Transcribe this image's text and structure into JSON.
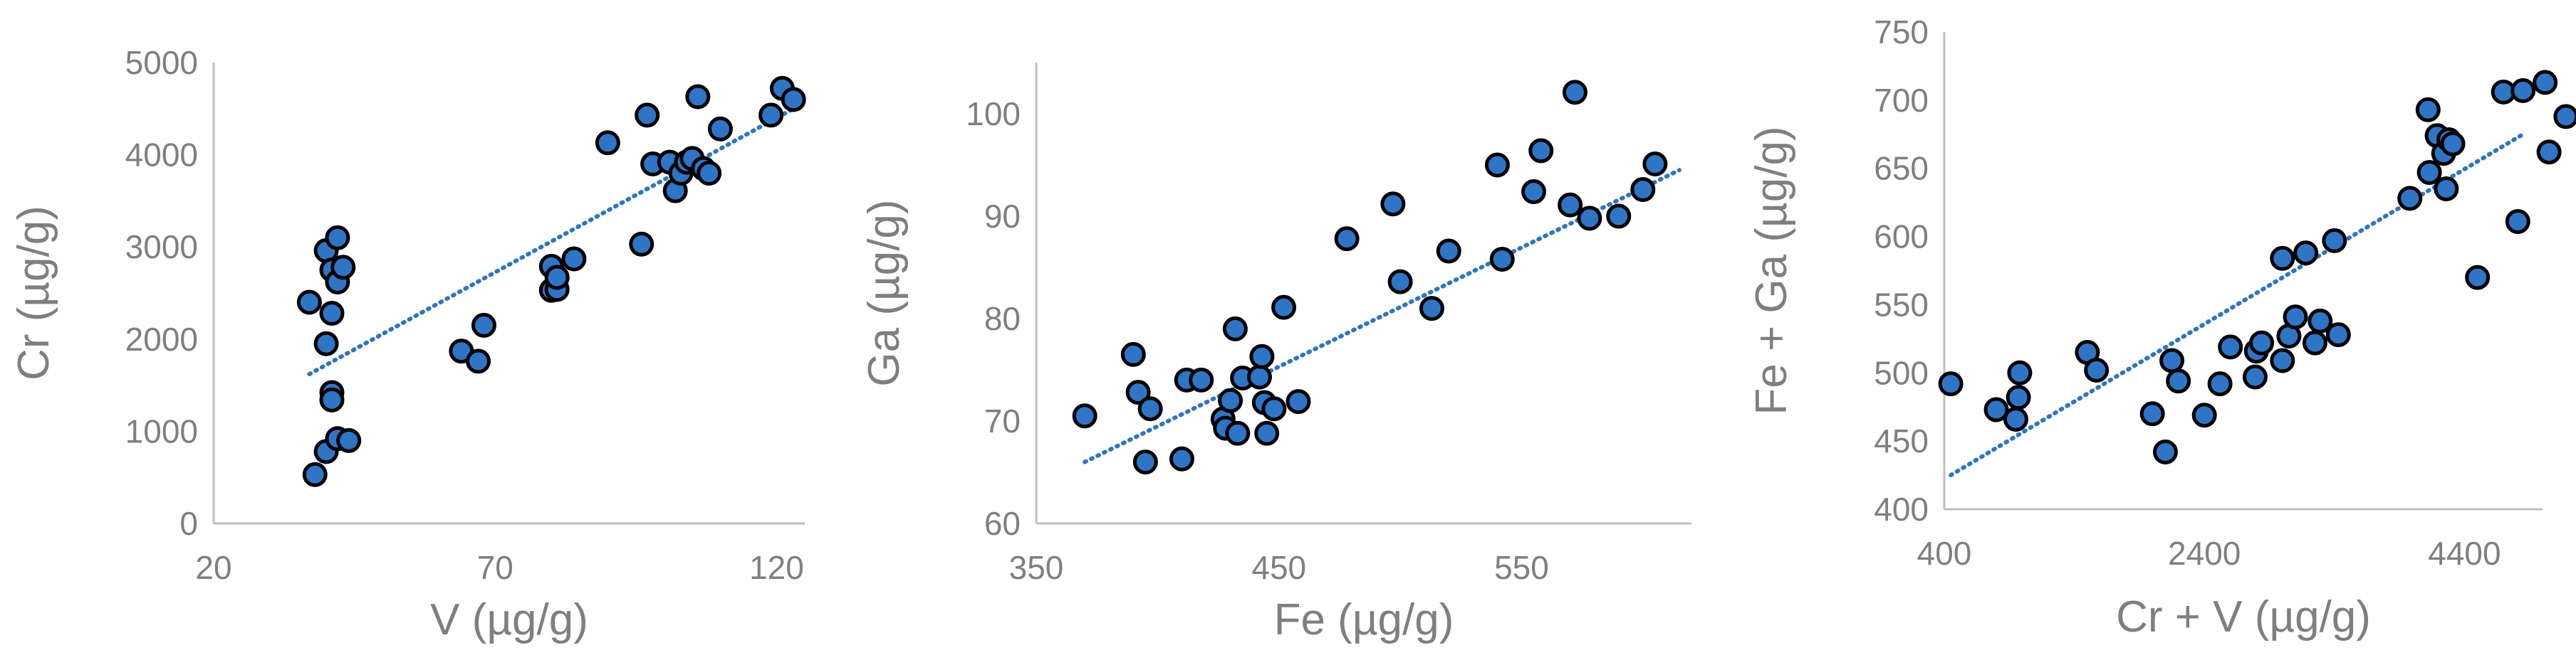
{
  "colors": {
    "marker_fill": "#2e75c6",
    "marker_stroke": "#000000",
    "trend": "#2e75c6",
    "axis": "#bfbfbf",
    "text": "#7f7f7f"
  },
  "chart_data": [
    {
      "type": "scatter",
      "xlabel": "V  (µg/g)",
      "ylabel": "Cr (µg/g)",
      "xlim": [
        20,
        125
      ],
      "ylim": [
        0,
        5000
      ],
      "xticks": [
        "20",
        "70",
        "120"
      ],
      "yticks": [
        "0",
        "1000",
        "2000",
        "3000",
        "4000",
        "5000"
      ],
      "trendline": {
        "style": "dotted",
        "from": [
          37,
          1620
        ],
        "to": [
          123,
          4500
        ]
      },
      "points": [
        [
          37,
          2400
        ],
        [
          38,
          530
        ],
        [
          40,
          1950
        ],
        [
          40,
          2960
        ],
        [
          40,
          780
        ],
        [
          41,
          2750
        ],
        [
          41,
          2280
        ],
        [
          41,
          1420
        ],
        [
          41,
          1340
        ],
        [
          42,
          3100
        ],
        [
          42,
          2620
        ],
        [
          42,
          920
        ],
        [
          43,
          2780
        ],
        [
          44,
          900
        ],
        [
          64,
          1870
        ],
        [
          67,
          1760
        ],
        [
          68,
          2150
        ],
        [
          80,
          2790
        ],
        [
          80,
          2530
        ],
        [
          81,
          2540
        ],
        [
          81,
          2670
        ],
        [
          84,
          2870
        ],
        [
          90,
          4130
        ],
        [
          96,
          3030
        ],
        [
          97,
          4430
        ],
        [
          98,
          3900
        ],
        [
          101,
          3920
        ],
        [
          102,
          3610
        ],
        [
          103,
          3800
        ],
        [
          104,
          3920
        ],
        [
          105,
          3960
        ],
        [
          106,
          4630
        ],
        [
          107,
          3850
        ],
        [
          108,
          3800
        ],
        [
          110,
          4280
        ],
        [
          119,
          4430
        ],
        [
          121,
          4720
        ],
        [
          123,
          4600
        ]
      ]
    },
    {
      "type": "scatter",
      "xlabel": "Fe (µg/g)",
      "ylabel": "Ga  (µg/g)",
      "xlim": [
        350,
        620
      ],
      "ylim": [
        60,
        105
      ],
      "xticks": [
        "350",
        "450",
        "550"
      ],
      "yticks": [
        "60",
        "70",
        "80",
        "90",
        "100"
      ],
      "trendline": {
        "style": "dotted",
        "from": [
          370,
          66
        ],
        "to": [
          615,
          94.5
        ]
      },
      "points": [
        [
          370,
          70.5
        ],
        [
          390,
          76.5
        ],
        [
          392,
          72.8
        ],
        [
          395,
          66
        ],
        [
          397,
          71.2
        ],
        [
          410,
          66.3
        ],
        [
          412,
          74
        ],
        [
          418,
          74
        ],
        [
          427,
          70.2
        ],
        [
          428,
          69.3
        ],
        [
          430,
          72
        ],
        [
          432,
          79
        ],
        [
          433,
          68.8
        ],
        [
          435,
          74.2
        ],
        [
          442,
          74.3
        ],
        [
          443,
          76.3
        ],
        [
          444,
          71.8
        ],
        [
          445,
          68.8
        ],
        [
          448,
          71.2
        ],
        [
          452,
          81.1
        ],
        [
          458,
          71.9
        ],
        [
          478,
          87.8
        ],
        [
          497,
          91.2
        ],
        [
          500,
          83.6
        ],
        [
          513,
          81
        ],
        [
          520,
          86.6
        ],
        [
          540,
          95
        ],
        [
          542,
          85.8
        ],
        [
          555,
          92.4
        ],
        [
          558,
          96.4
        ],
        [
          570,
          91.1
        ],
        [
          572,
          102.1
        ],
        [
          578,
          89.8
        ],
        [
          590,
          90
        ],
        [
          600,
          92.6
        ],
        [
          605,
          95.1
        ]
      ]
    },
    {
      "type": "scatter",
      "xlabel": "Cr + V  (µg/g)",
      "ylabel": "Fe + Ga  (µg/g)",
      "xlim": [
        400,
        5000
      ],
      "ylim": [
        400,
        750
      ],
      "xticks": [
        "400",
        "2400",
        "4400"
      ],
      "yticks": [
        "400",
        "450",
        "500",
        "550",
        "600",
        "650",
        "700",
        "750"
      ],
      "trendline": {
        "style": "dotted",
        "from": [
          450,
          425
        ],
        "to": [
          4850,
          675
        ]
      },
      "points": [
        [
          450,
          492
        ],
        [
          800,
          473
        ],
        [
          950,
          466
        ],
        [
          970,
          482
        ],
        [
          980,
          500
        ],
        [
          1500,
          515
        ],
        [
          1570,
          502
        ],
        [
          2000,
          470
        ],
        [
          2100,
          442
        ],
        [
          2150,
          509
        ],
        [
          2200,
          494
        ],
        [
          2400,
          469
        ],
        [
          2520,
          492
        ],
        [
          2600,
          519
        ],
        [
          2790,
          497
        ],
        [
          2800,
          516
        ],
        [
          2840,
          522
        ],
        [
          3000,
          584
        ],
        [
          3000,
          509
        ],
        [
          3050,
          527
        ],
        [
          3100,
          541
        ],
        [
          3180,
          588
        ],
        [
          3250,
          522
        ],
        [
          3290,
          538
        ],
        [
          3400,
          597
        ],
        [
          3430,
          528
        ],
        [
          3980,
          628
        ],
        [
          4120,
          693
        ],
        [
          4130,
          647
        ],
        [
          4190,
          674
        ],
        [
          4240,
          661
        ],
        [
          4260,
          635
        ],
        [
          4280,
          671
        ],
        [
          4310,
          668
        ],
        [
          4500,
          570
        ],
        [
          4700,
          706
        ],
        [
          4810,
          611
        ],
        [
          4850,
          707
        ],
        [
          5020,
          713
        ],
        [
          5050,
          662
        ],
        [
          5180,
          688
        ]
      ]
    }
  ]
}
